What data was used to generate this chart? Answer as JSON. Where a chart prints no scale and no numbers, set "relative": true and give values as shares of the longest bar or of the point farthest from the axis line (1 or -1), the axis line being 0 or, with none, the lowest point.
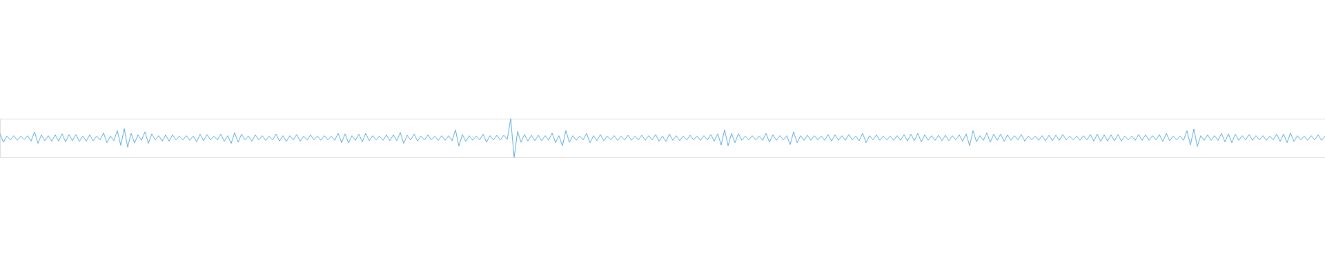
{
  "chart_data": {
    "type": "line",
    "relative": true,
    "categories": [
      null,
      null,
      null,
      null,
      null,
      null,
      null,
      null,
      null,
      null,
      null,
      null,
      null,
      null,
      null,
      null,
      null,
      null,
      null,
      null,
      null,
      null,
      null,
      null,
      null,
      null,
      null,
      null,
      null,
      null,
      null,
      null,
      null,
      null,
      null,
      null,
      null,
      null,
      null,
      null,
      null,
      null,
      null,
      null,
      null,
      null,
      null,
      null,
      null,
      null,
      null,
      null,
      null,
      null,
      null,
      null,
      null,
      null,
      null,
      null,
      null,
      null,
      null,
      null,
      null,
      null,
      null,
      null,
      null,
      null,
      null,
      null,
      null,
      null,
      null,
      null,
      null,
      null,
      null,
      null,
      null,
      null,
      null,
      null,
      null,
      null,
      null,
      null,
      null,
      null,
      null,
      null,
      null,
      null,
      null,
      null,
      null,
      null,
      null,
      null,
      null,
      null,
      null,
      null,
      null,
      null,
      null,
      null,
      null,
      null,
      null,
      null,
      null,
      null,
      null,
      null,
      null,
      null,
      null,
      null,
      null,
      null,
      null,
      null,
      null,
      null,
      null,
      null,
      null,
      null,
      null,
      null,
      null,
      null,
      null,
      null,
      null,
      null,
      null,
      null,
      null,
      null,
      null,
      null,
      null,
      null,
      null,
      null,
      null,
      null,
      null,
      null,
      null,
      null,
      null,
      null,
      null,
      null,
      null,
      null,
      null,
      null,
      null,
      null,
      null,
      null,
      null,
      null,
      null,
      null,
      null,
      null,
      null,
      null,
      null,
      null,
      null,
      null,
      null,
      null,
      null,
      null,
      null,
      null,
      null,
      null,
      null,
      null,
      null,
      null,
      null,
      null,
      null,
      null,
      null,
      null,
      null,
      null,
      null,
      null,
      null,
      null,
      null,
      null,
      null,
      null,
      null,
      null,
      null,
      null,
      null,
      null,
      null,
      null,
      null,
      null,
      null,
      null,
      null,
      null,
      null,
      null,
      null,
      null,
      null,
      null,
      null,
      null,
      null,
      null,
      null,
      null,
      null,
      null,
      null,
      null,
      null,
      null,
      null,
      null,
      null,
      null,
      null,
      null,
      null,
      null,
      null,
      null,
      null,
      null,
      null,
      null,
      null,
      null,
      null,
      null,
      null,
      null,
      null,
      null,
      null,
      null,
      null,
      null,
      null,
      null,
      null,
      null,
      null,
      null,
      null,
      null,
      null,
      null,
      null,
      null,
      null,
      null,
      null,
      null,
      null,
      null,
      null,
      null,
      null,
      null,
      null,
      null,
      null,
      null,
      null,
      null,
      null,
      null,
      null,
      null,
      null,
      null,
      null,
      null,
      null,
      null,
      null,
      null,
      null,
      null,
      null,
      null,
      null,
      null,
      null,
      null,
      null,
      null,
      null,
      null,
      null,
      null,
      null,
      null,
      null,
      null,
      null,
      null,
      null,
      null,
      null,
      null,
      null,
      null,
      null,
      null,
      null,
      null,
      null,
      null,
      null,
      null,
      null,
      null,
      null,
      null,
      null,
      null,
      null,
      null,
      null,
      null,
      null,
      null,
      null,
      null,
      null,
      null,
      null,
      null,
      null,
      null,
      null,
      null,
      null,
      null,
      null,
      null,
      null,
      null,
      null,
      null,
      null,
      null,
      null,
      null,
      null,
      null,
      null,
      null,
      null,
      null,
      null,
      null,
      null,
      null,
      null,
      null,
      null
    ],
    "series": [
      {
        "color": "#5dade2",
        "values": [
          0.61,
          0.39,
          0.55,
          0.45,
          0.56,
          0.44,
          0.55,
          0.46,
          0.56,
          0.42,
          0.66,
          0.36,
          0.58,
          0.43,
          0.56,
          0.42,
          0.58,
          0.42,
          0.61,
          0.4,
          0.59,
          0.43,
          0.59,
          0.41,
          0.55,
          0.42,
          0.58,
          0.43,
          0.55,
          0.45,
          0.63,
          0.38,
          0.55,
          0.43,
          0.69,
          0.31,
          0.74,
          0.26,
          0.62,
          0.37,
          0.58,
          0.44,
          0.66,
          0.36,
          0.61,
          0.45,
          0.56,
          0.42,
          0.58,
          0.42,
          0.58,
          0.45,
          0.55,
          0.45,
          0.56,
          0.44,
          0.55,
          0.4,
          0.6,
          0.43,
          0.59,
          0.45,
          0.55,
          0.45,
          0.6,
          0.41,
          0.56,
          0.36,
          0.64,
          0.39,
          0.6,
          0.45,
          0.55,
          0.42,
          0.58,
          0.45,
          0.56,
          0.44,
          0.55,
          0.45,
          0.6,
          0.42,
          0.56,
          0.41,
          0.56,
          0.45,
          0.59,
          0.42,
          0.55,
          0.45,
          0.58,
          0.45,
          0.55,
          0.44,
          0.56,
          0.45,
          0.55,
          0.44,
          0.62,
          0.38,
          0.61,
          0.37,
          0.56,
          0.44,
          0.6,
          0.4,
          0.62,
          0.43,
          0.56,
          0.45,
          0.55,
          0.44,
          0.58,
          0.43,
          0.58,
          0.43,
          0.64,
          0.36,
          0.57,
          0.45,
          0.6,
          0.42,
          0.55,
          0.45,
          0.58,
          0.45,
          0.55,
          0.44,
          0.56,
          0.44,
          0.56,
          0.43,
          0.71,
          0.29,
          0.59,
          0.41,
          0.56,
          0.44,
          0.55,
          0.45,
          0.6,
          0.39,
          0.56,
          0.45,
          0.57,
          0.45,
          0.57,
          0.46,
          1,
          0,
          0.67,
          0.39,
          0.59,
          0.42,
          0.57,
          0.43,
          0.57,
          0.43,
          0.56,
          0.44,
          0.63,
          0.38,
          0.56,
          0.3,
          0.69,
          0.39,
          0.56,
          0.44,
          0.55,
          0.45,
          0.62,
          0.38,
          0.56,
          0.43,
          0.59,
          0.43,
          0.55,
          0.45,
          0.56,
          0.44,
          0.55,
          0.45,
          0.57,
          0.44,
          0.55,
          0.45,
          0.57,
          0.44,
          0.56,
          0.45,
          0.59,
          0.42,
          0.55,
          0.41,
          0.6,
          0.44,
          0.56,
          0.43,
          0.55,
          0.45,
          0.57,
          0.45,
          0.55,
          0.44,
          0.56,
          0.45,
          0.59,
          0.42,
          0.61,
          0.32,
          0.71,
          0.3,
          0.62,
          0.38,
          0.61,
          0.44,
          0.55,
          0.45,
          0.56,
          0.45,
          0.55,
          0.44,
          0.62,
          0.39,
          0.58,
          0.44,
          0.56,
          0.45,
          0.56,
          0.33,
          0.66,
          0.38,
          0.56,
          0.44,
          0.57,
          0.44,
          0.56,
          0.45,
          0.55,
          0.44,
          0.59,
          0.42,
          0.58,
          0.44,
          0.56,
          0.44,
          0.59,
          0.45,
          0.55,
          0.43,
          0.62,
          0.38,
          0.56,
          0.45,
          0.58,
          0.44,
          0.55,
          0.45,
          0.55,
          0.44,
          0.56,
          0.44,
          0.59,
          0.42,
          0.6,
          0.43,
          0.62,
          0.4,
          0.58,
          0.44,
          0.56,
          0.44,
          0.57,
          0.43,
          0.57,
          0.43,
          0.56,
          0.45,
          0.58,
          0.42,
          0.61,
          0.3,
          0.69,
          0.4,
          0.56,
          0.44,
          0.63,
          0.39,
          0.6,
          0.44,
          0.6,
          0.41,
          0.58,
          0.44,
          0.56,
          0.45,
          0.59,
          0.42,
          0.55,
          0.45,
          0.55,
          0.44,
          0.56,
          0.43,
          0.57,
          0.43,
          0.57,
          0.44,
          0.59,
          0.45,
          0.55,
          0.45,
          0.55,
          0.44,
          0.56,
          0.45,
          0.59,
          0.42,
          0.6,
          0.41,
          0.58,
          0.42,
          0.58,
          0.43,
          0.59,
          0.42,
          0.55,
          0.45,
          0.55,
          0.44,
          0.59,
          0.44,
          0.58,
          0.44,
          0.56,
          0.45,
          0.59,
          0.41,
          0.62,
          0.43,
          0.55,
          0.45,
          0.55,
          0.44,
          0.69,
          0.32,
          0.73,
          0.28,
          0.56,
          0.44,
          0.58,
          0.44,
          0.56,
          0.44,
          0.62,
          0.4,
          0.61,
          0.38,
          0.6,
          0.44,
          0.56,
          0.45,
          0.59,
          0.44,
          0.56,
          0.45,
          0.56,
          0.44,
          0.55,
          0.45,
          0.6,
          0.41,
          0.6,
          0.38,
          0.63,
          0.41,
          0.56,
          0.45,
          0.55,
          0.44,
          0.56,
          0.45,
          0.58,
          0.44,
          0.55
        ]
      }
    ]
  }
}
